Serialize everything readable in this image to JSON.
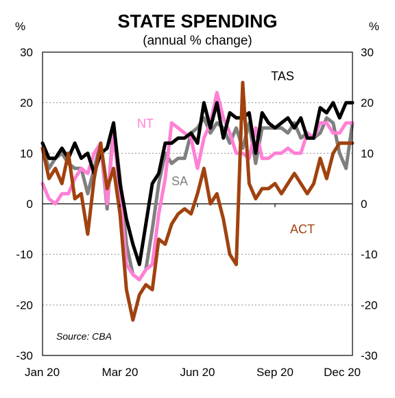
{
  "chart_data": {
    "type": "line",
    "title": "STATE SPENDING",
    "subtitle": "(annual % change)",
    "left_unit": "%",
    "right_unit": "%",
    "source": "Source: CBA",
    "ylim": [
      -30,
      30
    ],
    "yticks": [
      30,
      20,
      10,
      0,
      -10,
      -20,
      -30
    ],
    "xlim": [
      0,
      48
    ],
    "x_ticks": [
      {
        "label": "Jan 20",
        "x": 0
      },
      {
        "label": "Mar 20",
        "x": 12
      },
      {
        "label": "Jun 20",
        "x": 24
      },
      {
        "label": "Sep 20",
        "x": 36
      },
      {
        "label": "Dec 20",
        "x": 48
      }
    ],
    "grid": true,
    "series": [
      {
        "name": "SA",
        "color": "#808080",
        "x": [
          0,
          1,
          2,
          3,
          4,
          5,
          6,
          7,
          8,
          9,
          10,
          11,
          12,
          13,
          14,
          15,
          16,
          17,
          18,
          19,
          20,
          21,
          22,
          23,
          24,
          25,
          26,
          27,
          28,
          29,
          30,
          31,
          32,
          33,
          34,
          35,
          36,
          37,
          38,
          39,
          40,
          41,
          42,
          43,
          44,
          45,
          46,
          47,
          48
        ],
        "values": [
          11,
          7,
          9,
          10,
          8,
          7,
          7,
          2,
          7,
          12,
          -1,
          16,
          5,
          -8,
          -14,
          -15,
          -13,
          -5,
          4,
          10,
          8,
          9,
          9,
          14,
          15,
          17,
          14,
          16,
          15,
          12,
          15,
          11,
          16,
          8,
          15,
          15,
          15,
          15,
          14,
          16,
          13,
          14,
          13,
          14,
          17,
          16,
          10,
          7,
          16
        ]
      },
      {
        "name": "NT",
        "color": "#ff80d5",
        "x": [
          0,
          1,
          2,
          3,
          4,
          5,
          6,
          7,
          8,
          9,
          10,
          11,
          12,
          13,
          14,
          15,
          16,
          17,
          18,
          19,
          20,
          21,
          22,
          23,
          24,
          25,
          26,
          27,
          28,
          29,
          30,
          31,
          32,
          33,
          34,
          35,
          36,
          37,
          38,
          39,
          40,
          41,
          42,
          43,
          44,
          45,
          46,
          47,
          48
        ],
        "values": [
          4,
          1,
          0,
          2,
          2,
          5,
          7,
          6,
          10,
          12,
          0,
          14,
          2,
          -12,
          -14,
          -15,
          -13,
          -12,
          -2,
          5,
          16,
          15,
          14,
          13,
          7,
          13,
          16,
          22,
          17,
          14,
          10,
          10,
          9,
          15,
          9,
          9,
          10,
          10,
          11,
          10,
          10,
          14,
          13,
          16,
          16,
          14,
          14,
          16,
          16
        ]
      },
      {
        "name": "TAS",
        "color": "#000000",
        "x": [
          0,
          1,
          2,
          3,
          4,
          5,
          6,
          7,
          8,
          9,
          10,
          11,
          12,
          13,
          14,
          15,
          16,
          17,
          18,
          19,
          20,
          21,
          22,
          23,
          24,
          25,
          26,
          27,
          28,
          29,
          30,
          31,
          32,
          33,
          34,
          35,
          36,
          37,
          38,
          39,
          40,
          41,
          42,
          43,
          44,
          45,
          46,
          47,
          48
        ],
        "values": [
          12,
          9,
          9,
          11,
          9,
          12,
          9,
          10,
          6,
          10,
          11,
          16,
          4,
          -3,
          -8,
          -12,
          -4,
          4,
          6,
          12,
          12,
          13,
          13,
          14,
          12,
          20,
          15,
          20,
          13,
          18,
          17,
          17,
          18,
          10,
          18,
          16,
          15,
          16,
          17,
          15,
          17,
          13,
          13,
          19,
          18,
          20,
          17,
          20,
          20
        ]
      },
      {
        "name": "ACT",
        "color": "#a0420f",
        "x": [
          0,
          1,
          2,
          3,
          4,
          5,
          6,
          7,
          8,
          9,
          10,
          11,
          12,
          13,
          14,
          15,
          16,
          17,
          18,
          19,
          20,
          21,
          22,
          23,
          24,
          25,
          26,
          27,
          28,
          29,
          30,
          31,
          32,
          33,
          34,
          35,
          36,
          37,
          38,
          39,
          40,
          41,
          42,
          43,
          44,
          45,
          46,
          47,
          48
        ],
        "values": [
          11,
          5,
          7,
          4,
          10,
          1,
          2,
          -6,
          5,
          12,
          3,
          7,
          -2,
          -17,
          -23,
          -18,
          -16,
          -17,
          -7,
          -8,
          -4,
          -2,
          -1,
          -2,
          2,
          7,
          0,
          2,
          -3,
          -10,
          -12,
          24,
          4,
          1,
          3,
          3,
          4,
          2,
          4,
          6,
          4,
          2,
          4,
          9,
          5,
          10,
          12,
          12,
          12
        ]
      }
    ],
    "series_labels": [
      {
        "name": "TAS",
        "color": "#000000"
      },
      {
        "name": "NT",
        "color": "#ff80d5"
      },
      {
        "name": "SA",
        "color": "#808080"
      },
      {
        "name": "ACT",
        "color": "#a0420f"
      }
    ]
  }
}
